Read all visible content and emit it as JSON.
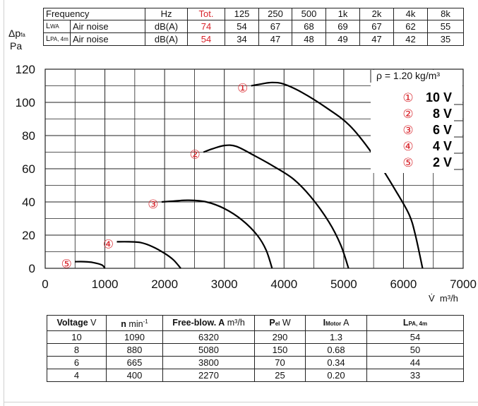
{
  "noise_table": {
    "rows": [
      {
        "label": "Frequency",
        "sub": "",
        "label2": "",
        "unit": "Hz",
        "total": "Tot.",
        "values": [
          "125",
          "250",
          "500",
          "1k",
          "2k",
          "4k",
          "8k"
        ]
      },
      {
        "label": "L",
        "sub": "WA",
        "label2": "Air noise",
        "unit": "dB(A)",
        "total": "74",
        "values": [
          "54",
          "67",
          "68",
          "69",
          "67",
          "62",
          "55"
        ]
      },
      {
        "label": "L",
        "sub": "PA, 4m",
        "label2": "Air noise",
        "unit": "dB(A)",
        "total": "54",
        "values": [
          "34",
          "47",
          "48",
          "49",
          "47",
          "42",
          "35"
        ]
      }
    ],
    "highlight_color": "#d8232a"
  },
  "chart_data": {
    "type": "line",
    "ylabel": "Δp",
    "ylabel_sub": "fa",
    "ylabel_unit": "Pa",
    "xlabel_symbol": "V̇",
    "xlabel_unit": "m³/h",
    "xlim": [
      0,
      7000
    ],
    "ylim": [
      0,
      120
    ],
    "x_ticks": [
      0,
      1000,
      2000,
      3000,
      4000,
      5000,
      6000,
      7000
    ],
    "y_ticks": [
      0,
      20,
      40,
      60,
      80,
      100,
      120
    ],
    "grid": true,
    "density_note": "ρ = 1.20 kg/m³",
    "legend_position": "top-right",
    "series": [
      {
        "name": "10 V",
        "marker": "①",
        "points": [
          [
            3450,
            110
          ],
          [
            3600,
            111
          ],
          [
            3800,
            112
          ],
          [
            4000,
            111
          ],
          [
            4300,
            106
          ],
          [
            4700,
            97
          ],
          [
            5100,
            86
          ],
          [
            5500,
            68
          ],
          [
            5900,
            45
          ],
          [
            6100,
            32
          ],
          [
            6200,
            20
          ],
          [
            6320,
            0
          ]
        ]
      },
      {
        "name": "8 V",
        "marker": "②",
        "points": [
          [
            2650,
            70
          ],
          [
            2800,
            72
          ],
          [
            3000,
            74
          ],
          [
            3200,
            73.5
          ],
          [
            3500,
            68
          ],
          [
            3800,
            62
          ],
          [
            4150,
            54
          ],
          [
            4450,
            43
          ],
          [
            4750,
            28
          ],
          [
            4950,
            14
          ],
          [
            5080,
            0
          ]
        ]
      },
      {
        "name": "6 V",
        "marker": "③",
        "points": [
          [
            1950,
            40
          ],
          [
            2150,
            40.5
          ],
          [
            2400,
            41
          ],
          [
            2700,
            40
          ],
          [
            3000,
            36
          ],
          [
            3300,
            29
          ],
          [
            3550,
            20
          ],
          [
            3700,
            11
          ],
          [
            3800,
            0
          ]
        ]
      },
      {
        "name": "4 V",
        "marker": "④",
        "points": [
          [
            1200,
            16
          ],
          [
            1400,
            16
          ],
          [
            1600,
            15.5
          ],
          [
            1800,
            13
          ],
          [
            2000,
            9
          ],
          [
            2150,
            5
          ],
          [
            2270,
            0
          ]
        ]
      },
      {
        "name": "2 V",
        "marker": "⑤",
        "points": [
          [
            500,
            4
          ],
          [
            650,
            4
          ],
          [
            800,
            3.5
          ],
          [
            950,
            2
          ],
          [
            1000,
            0
          ]
        ]
      }
    ]
  },
  "spec_table": {
    "headers": [
      {
        "bold": "Voltage",
        "rest": " V",
        "sub": ""
      },
      {
        "bold": "n",
        "rest": " min",
        "sub": "-1"
      },
      {
        "bold": "Free-blow. A",
        "rest": " m³/h",
        "sub": ""
      },
      {
        "bold": "P",
        "rest": " W",
        "sub": "el"
      },
      {
        "bold": "I",
        "rest": " A",
        "sub": "Motor"
      },
      {
        "bold": "L",
        "rest": "",
        "sub": "PA, 4m"
      }
    ],
    "rows": [
      [
        "10",
        "1090",
        "6320",
        "290",
        "1.3",
        "54"
      ],
      [
        "8",
        "880",
        "5080",
        "150",
        "0.68",
        "50"
      ],
      [
        "6",
        "665",
        "3800",
        "70",
        "0.34",
        "44"
      ],
      [
        "4",
        "400",
        "2270",
        "25",
        "0.20",
        "33"
      ]
    ]
  }
}
